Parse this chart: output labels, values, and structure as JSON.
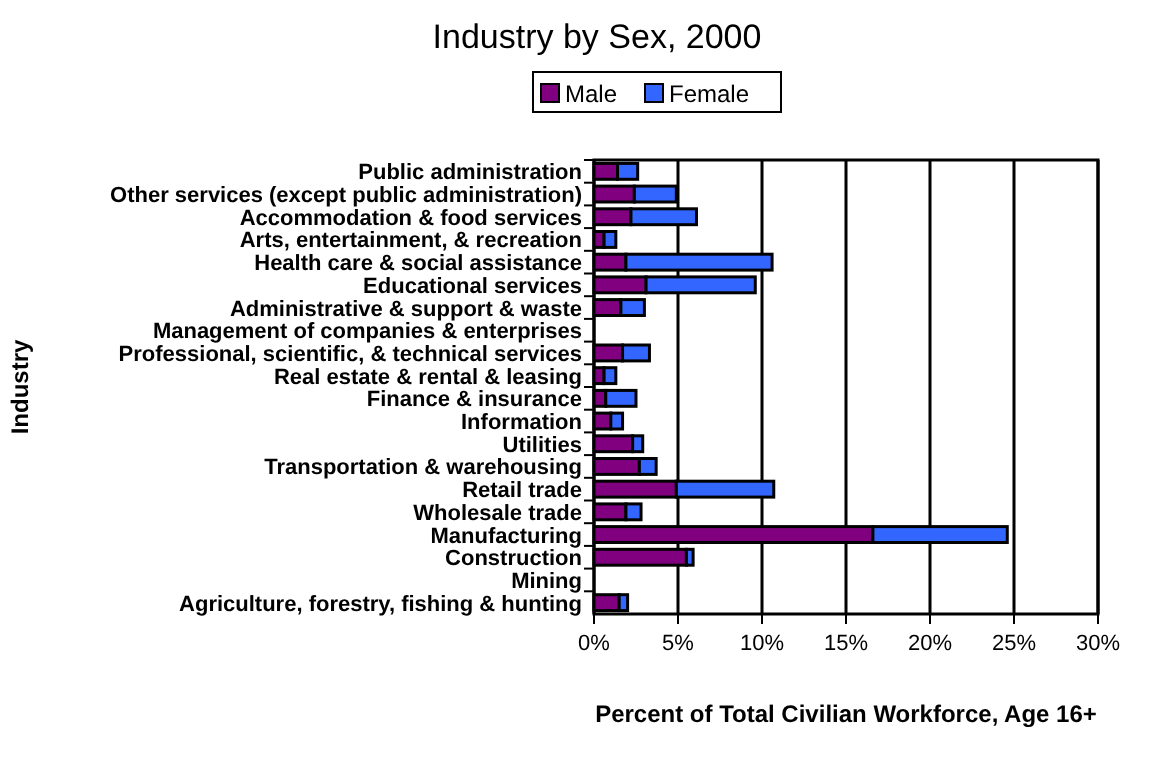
{
  "chart_data": {
    "type": "bar",
    "title": "Industry by Sex, 2000",
    "orientation": "horizontal",
    "stacked": true,
    "xlabel": "Percent of Total Civilian Workforce, Age 16+",
    "ylabel": "Industry",
    "categories": [
      "Public administration",
      "Other services (except public administration)",
      "Accommodation & food services",
      "Arts, entertainment, & recreation",
      "Health care & social assistance",
      "Educational services",
      "Administrative & support & waste",
      "Management of companies & enterprises",
      "Professional, scientific, & technical services",
      "Real estate & rental & leasing",
      "Finance & insurance",
      "Information",
      "Utilities",
      "Transportation & warehousing",
      "Retail trade",
      "Wholesale trade",
      "Manufacturing",
      "Construction",
      "Mining",
      "Agriculture, forestry, fishing & hunting"
    ],
    "series": [
      {
        "name": "Male",
        "color": "#800080",
        "values": [
          1.4,
          2.4,
          2.2,
          0.6,
          1.9,
          3.1,
          1.6,
          0,
          1.7,
          0.6,
          0.7,
          1,
          2.3,
          2.7,
          4.9,
          1.9,
          16.6,
          5.5,
          0,
          1.5
        ]
      },
      {
        "name": "Female",
        "color": "#3366ff",
        "values": [
          1.2,
          2.5,
          3.9,
          0.7,
          8.7,
          6.5,
          1.4,
          0,
          1.6,
          0.7,
          1.8,
          0.7,
          0.6,
          1,
          5.8,
          0.9,
          8,
          0.4,
          0,
          0.5
        ]
      }
    ],
    "xlim": [
      0,
      30
    ],
    "xticks": [
      {
        "value": 0,
        "label": "0%"
      },
      {
        "value": 5,
        "label": "5%"
      },
      {
        "value": 10,
        "label": "10%"
      },
      {
        "value": 15,
        "label": "15%"
      },
      {
        "value": 20,
        "label": "20%"
      },
      {
        "value": 25,
        "label": "25%"
      },
      {
        "value": 30,
        "label": "30%"
      }
    ],
    "grid": "x",
    "legend": "top"
  }
}
